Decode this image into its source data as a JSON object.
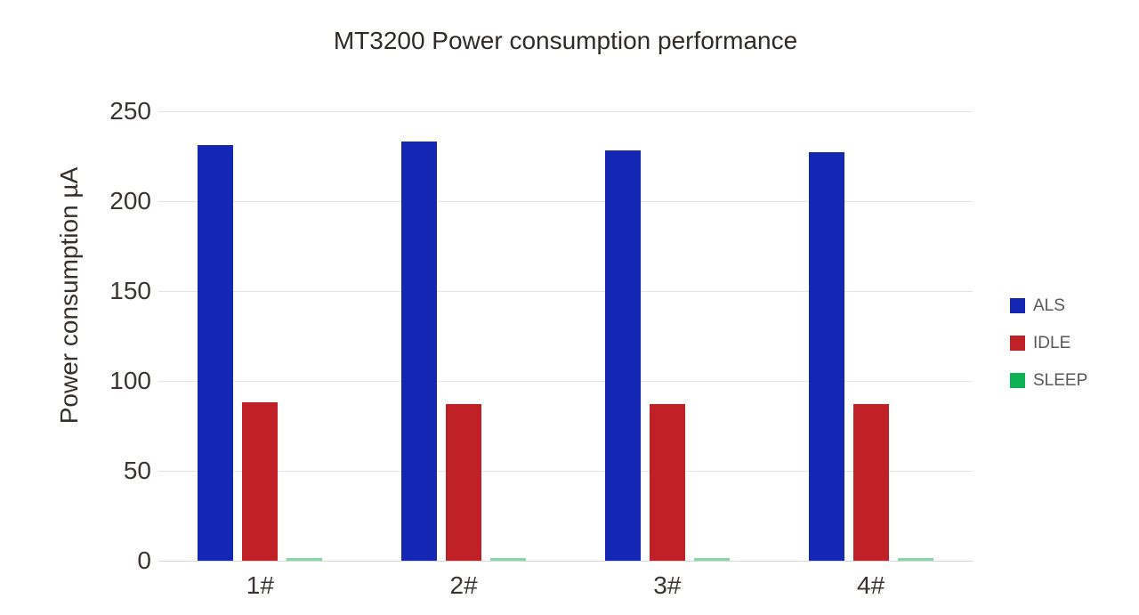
{
  "title": "MT3200 Power consumption performance",
  "chart_data": {
    "type": "bar",
    "title": "MT3200 Power consumption performance",
    "xlabel": "",
    "ylabel": "Power consumption µA",
    "categories": [
      "1#",
      "2#",
      "3#",
      "4#"
    ],
    "series": [
      {
        "name": "ALS",
        "color": "#1327b4",
        "values": [
          231,
          233,
          228,
          227
        ]
      },
      {
        "name": "IDLE",
        "color": "#bf2126",
        "values": [
          88,
          87,
          87,
          87
        ]
      },
      {
        "name": "SLEEP",
        "color": "#0eb154",
        "values": [
          1,
          1,
          1,
          1
        ]
      }
    ],
    "ylim": [
      0,
      250
    ],
    "yticks": [
      0,
      50,
      100,
      150,
      200,
      250
    ],
    "grid": true,
    "legend_position": "right",
    "background_color": "#ffffff",
    "gridline_color": "#e4e4e4",
    "axis_text_color": "#3a3532",
    "legend_text_color": "#595959"
  }
}
